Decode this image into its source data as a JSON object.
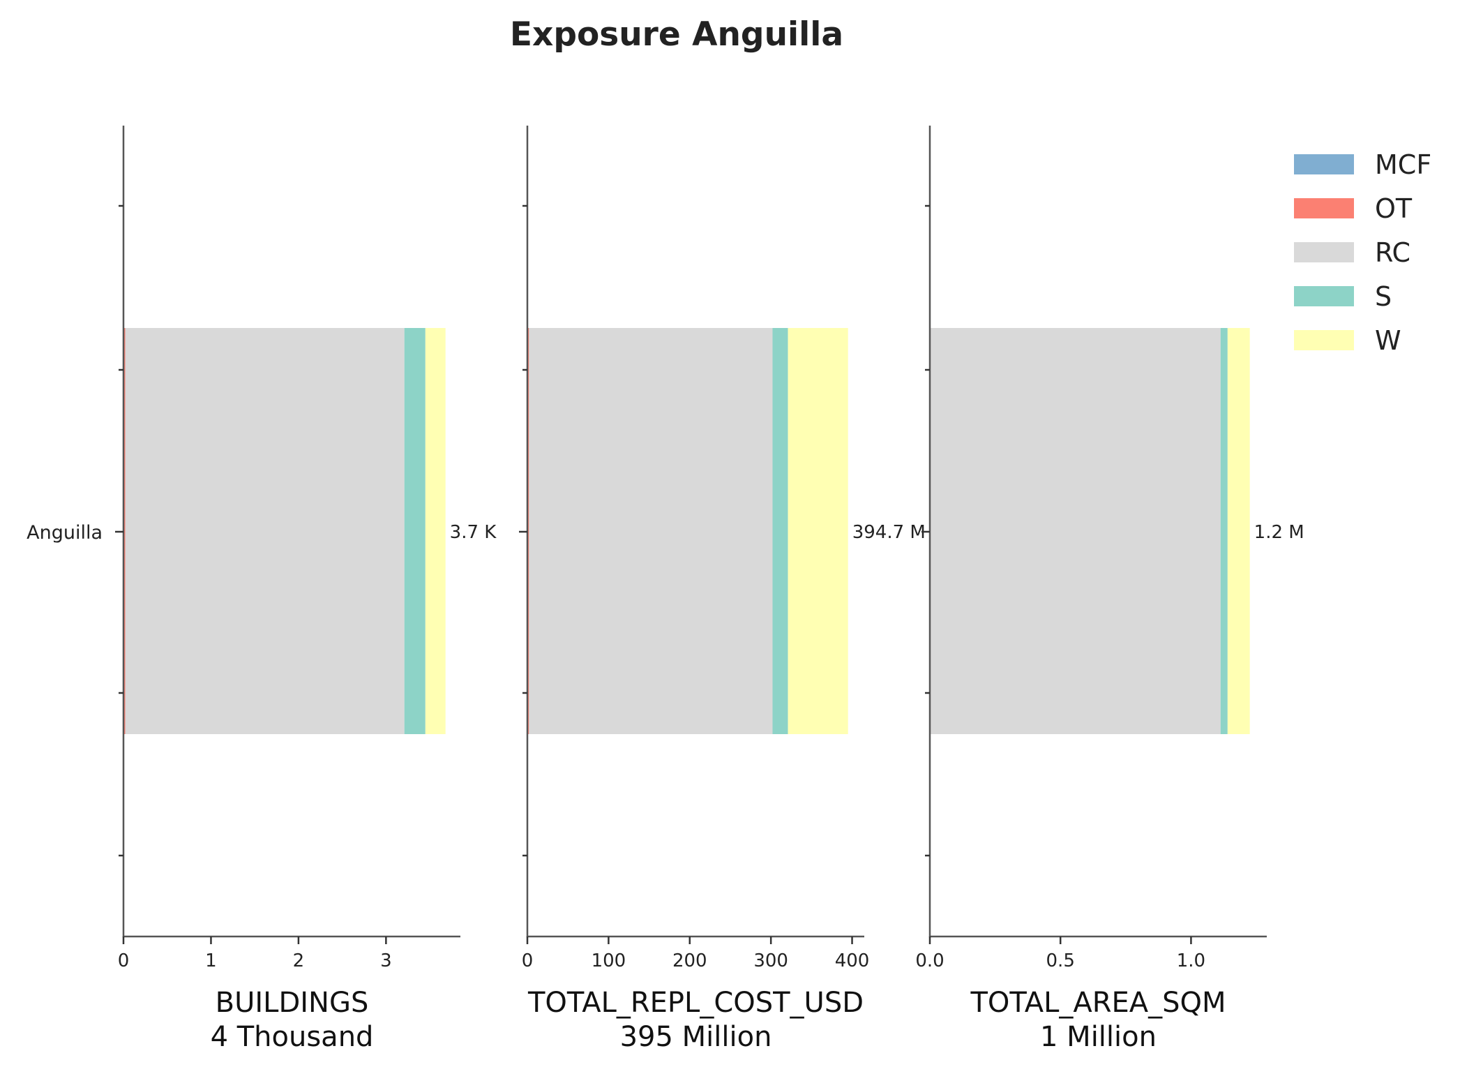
{
  "chart_data": {
    "type": "bar",
    "orientation": "horizontal",
    "stacked": true,
    "title": "Exposure Anguilla",
    "categories": [
      "Anguilla"
    ],
    "legend": {
      "placement": "right",
      "entries": [
        {
          "name": "MCF",
          "color": "#80aed1"
        },
        {
          "name": "OT",
          "color": "#fb8072"
        },
        {
          "name": "RC",
          "color": "#d9d9d9"
        },
        {
          "name": "S",
          "color": "#8dd3c7"
        },
        {
          "name": "W",
          "color": "#ffffb3"
        }
      ]
    },
    "grid": false,
    "panels": [
      {
        "xlabel": "BUILDINGS",
        "total_label": "4 Thousand",
        "bar_label": "3.7 K",
        "xlim": [
          0,
          3.85
        ],
        "ticks": [
          0,
          1,
          2,
          3
        ],
        "tick_labels": [
          "0",
          "1",
          "2",
          "3"
        ],
        "series": [
          {
            "name": "MCF",
            "values": [
              0
            ]
          },
          {
            "name": "OT",
            "values": [
              0.02
            ]
          },
          {
            "name": "RC",
            "values": [
              3.19
            ]
          },
          {
            "name": "S",
            "values": [
              0.24
            ]
          },
          {
            "name": "W",
            "values": [
              0.23
            ]
          }
        ]
      },
      {
        "xlabel": "TOTAL_REPL_COST_USD",
        "total_label": "395 Million",
        "bar_label": "394.7 M",
        "xlim": [
          0,
          415
        ],
        "ticks": [
          0,
          100,
          200,
          300,
          400
        ],
        "tick_labels": [
          "0",
          "100",
          "200",
          "300",
          "400"
        ],
        "series": [
          {
            "name": "MCF",
            "values": [
              0
            ]
          },
          {
            "name": "OT",
            "values": [
              2
            ]
          },
          {
            "name": "RC",
            "values": [
              300
            ]
          },
          {
            "name": "S",
            "values": [
              19
            ]
          },
          {
            "name": "W",
            "values": [
              74
            ]
          }
        ]
      },
      {
        "xlabel": "TOTAL_AREA_SQM",
        "total_label": "1 Million",
        "bar_label": "1.2 M",
        "xlim": [
          0,
          1.29
        ],
        "ticks": [
          0,
          0.5,
          1.0
        ],
        "tick_labels": [
          "0.0",
          "0.5",
          "1.0"
        ],
        "series": [
          {
            "name": "MCF",
            "values": [
              0
            ]
          },
          {
            "name": "OT",
            "values": [
              0.003
            ]
          },
          {
            "name": "RC",
            "values": [
              1.11
            ]
          },
          {
            "name": "S",
            "values": [
              0.027
            ]
          },
          {
            "name": "W",
            "values": [
              0.085
            ]
          }
        ]
      }
    ]
  }
}
